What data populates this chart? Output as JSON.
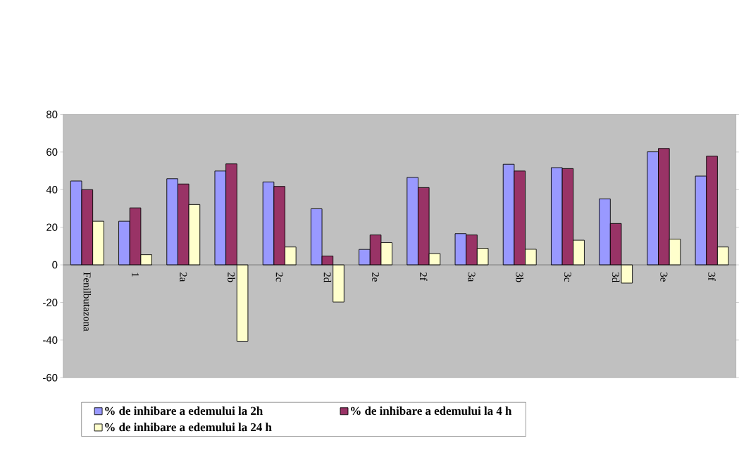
{
  "chart_data": {
    "type": "bar",
    "categories": [
      "Fenilbutazona",
      "1",
      "2a",
      "2b",
      "2c",
      "2d",
      "2e",
      "2f",
      "3a",
      "3b",
      "3c",
      "3d",
      "3e",
      "3f"
    ],
    "series": [
      {
        "name": "% de inhibare a edemului la 2h",
        "color": "#9999ff",
        "values": [
          44.6,
          23.2,
          45.8,
          49.9,
          44.1,
          29.8,
          8.2,
          46.5,
          16.6,
          53.5,
          51.7,
          35.1,
          60.1,
          47.2
        ]
      },
      {
        "name": "% de inhibare a edemului la 4 h",
        "color": "#993366",
        "values": [
          40.0,
          30.3,
          43.0,
          53.7,
          41.7,
          4.7,
          15.9,
          41.1,
          15.9,
          49.9,
          51.2,
          22.0,
          61.9,
          57.8
        ]
      },
      {
        "name": "% de inhibare a edemului la 24 h",
        "color": "#ffffcc",
        "values": [
          23.2,
          5.4,
          32.1,
          -40.6,
          9.5,
          -19.8,
          11.8,
          6.0,
          8.8,
          8.3,
          13.1,
          -9.7,
          13.7,
          9.5
        ]
      }
    ],
    "ylim": [
      -60,
      80
    ],
    "yticks": [
      -60,
      -40,
      -20,
      0,
      20,
      40,
      60,
      80
    ],
    "legend": "bottom"
  }
}
